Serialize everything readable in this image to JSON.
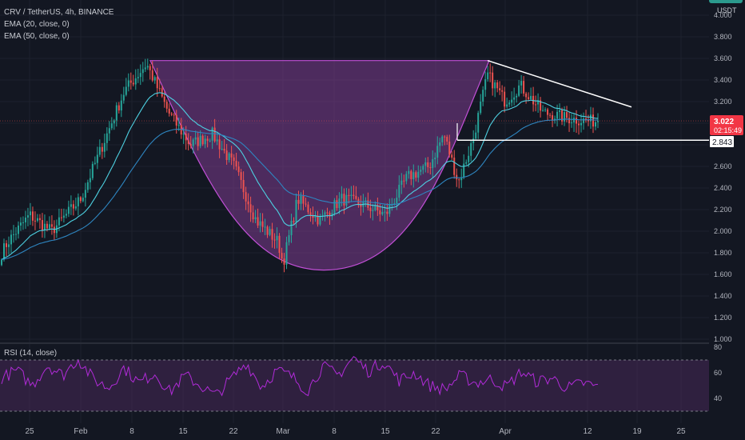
{
  "header": {
    "symbol_line": "CRV / TetherUS, 4h, BINANCE",
    "ema20_label": "EMA (20, close, 0)",
    "ema50_label": "EMA (50, close, 0)",
    "rsi_label": "RSI (14, close)",
    "currency": "USDT"
  },
  "price_badge": {
    "value": "3.022",
    "countdown": "02:15:49",
    "color": "#f23645"
  },
  "level_badge": {
    "value": "2.843"
  },
  "colors": {
    "background": "#131722",
    "up": "#26a69a",
    "down": "#ef5350",
    "ema20": "#4dd0e1",
    "ema50": "#2e86c1",
    "pattern_fill": "#7e3d8f",
    "pattern_stroke": "#c14fd6",
    "rsi_line": "#b12bd8",
    "rsi_band": "#4b2a5c"
  },
  "chart_data": [
    {
      "type": "candlestick",
      "title": "CRV / TetherUS, 4h, BINANCE",
      "ylabel": "USDT",
      "y_ticks": [
        "1.000",
        "1.200",
        "1.400",
        "1.600",
        "1.800",
        "2.000",
        "2.200",
        "2.400",
        "2.600",
        "2.800",
        "3.000",
        "3.200",
        "3.400",
        "3.600",
        "3.800",
        "4.000"
      ],
      "ylim": [
        1.0,
        4.0
      ],
      "x_ticks": [
        "25",
        "Feb",
        "8",
        "15",
        "22",
        "Mar",
        "8",
        "15",
        "22",
        "Apr",
        "12",
        "19",
        "25"
      ],
      "approx_close_path": [
        {
          "date": "Jan 20",
          "close": 1.65
        },
        {
          "date": "Jan 22",
          "close": 1.9
        },
        {
          "date": "Jan 25",
          "close": 2.15
        },
        {
          "date": "Jan 28",
          "close": 2.0
        },
        {
          "date": "Feb 1",
          "close": 2.3
        },
        {
          "date": "Feb 4",
          "close": 2.8
        },
        {
          "date": "Feb 7",
          "close": 3.3
        },
        {
          "date": "Feb 10",
          "close": 3.55
        },
        {
          "date": "Feb 13",
          "close": 3.1
        },
        {
          "date": "Feb 16",
          "close": 2.8
        },
        {
          "date": "Feb 19",
          "close": 2.9
        },
        {
          "date": "Feb 22",
          "close": 2.6
        },
        {
          "date": "Feb 25",
          "close": 2.1
        },
        {
          "date": "Feb 28",
          "close": 1.9
        },
        {
          "date": "Mar 1",
          "close": 1.7
        },
        {
          "date": "Mar 3",
          "close": 2.3
        },
        {
          "date": "Mar 6",
          "close": 2.1
        },
        {
          "date": "Mar 9",
          "close": 2.3
        },
        {
          "date": "Mar 12",
          "close": 2.25
        },
        {
          "date": "Mar 15",
          "close": 2.15
        },
        {
          "date": "Mar 18",
          "close": 2.5
        },
        {
          "date": "Mar 21",
          "close": 2.6
        },
        {
          "date": "Mar 23",
          "close": 2.9
        },
        {
          "date": "Mar 25",
          "close": 2.45
        },
        {
          "date": "Mar 27",
          "close": 2.85
        },
        {
          "date": "Mar 29",
          "close": 3.45
        },
        {
          "date": "Apr 1",
          "close": 3.2
        },
        {
          "date": "Apr 3",
          "close": 3.35
        },
        {
          "date": "Apr 6",
          "close": 3.1
        },
        {
          "date": "Apr 9",
          "close": 3.05
        },
        {
          "date": "Apr 12",
          "close": 3.02
        }
      ],
      "last_price": 3.022,
      "horizontal_level": 2.843,
      "pattern": "cup and handle",
      "pattern_rim": 3.58,
      "pattern_bottom": 1.64,
      "triangle_upper": {
        "start": {
          "date": "Mar 29",
          "price": 3.58
        },
        "end": {
          "date": "Apr 18",
          "price": 3.15
        }
      }
    },
    {
      "type": "line",
      "title": "RSI (14, close)",
      "y_ticks": [
        "40",
        "60",
        "80"
      ],
      "ylim": [
        25,
        82
      ],
      "band": [
        30,
        70
      ],
      "approx_values": [
        56,
        62,
        50,
        66,
        58,
        71,
        55,
        48,
        64,
        52,
        60,
        45,
        58,
        50,
        42,
        55,
        68,
        49,
        62,
        57,
        46,
        65,
        58,
        72,
        61,
        69,
        54,
        60,
        50,
        47,
        58,
        52,
        55,
        49,
        61,
        53,
        56,
        48,
        52,
        49
      ]
    }
  ]
}
